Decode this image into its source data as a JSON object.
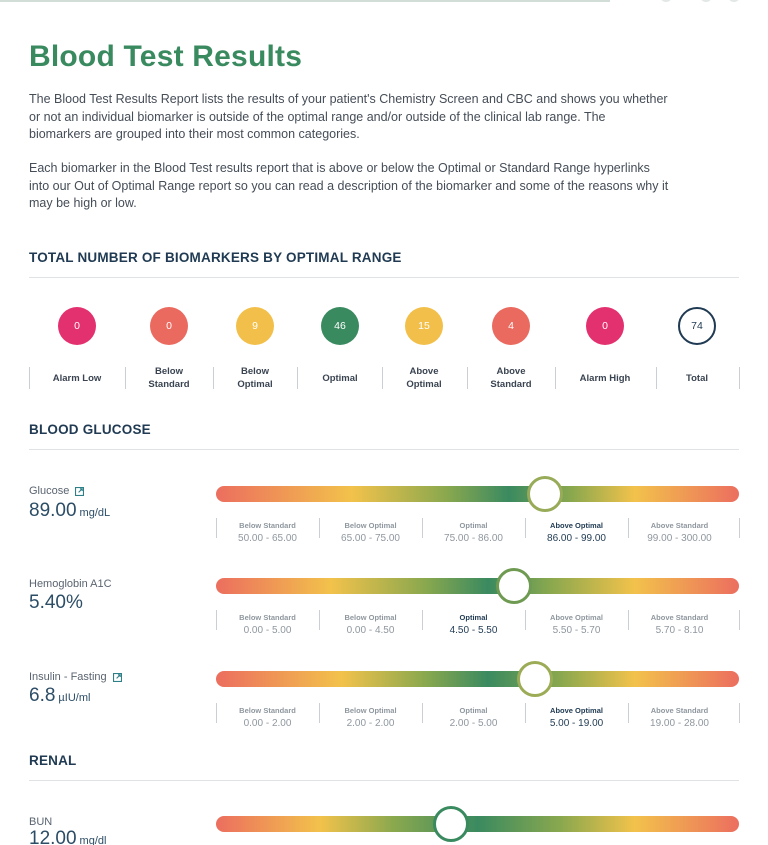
{
  "page": {
    "title": "Blood Test Results",
    "intro_p1": "The Blood Test Results Report lists the results of your patient's Chemistry Screen and CBC and shows you whether or not an individual biomarker is outside of the optimal range and/or outside of the clinical lab range. The biomarkers are grouped into their most common categories.",
    "intro_p2": "Each biomarker in the Blood Test results report that is above or below the Optimal or Standard Range hyperlinks into our Out of Optimal Range report so you can read a description of the biomarker and some of the reasons why it may be high or low."
  },
  "colors": {
    "title_green": "#3a8a60",
    "heading_navy": "#1f3a52",
    "alarm": "#e3306e",
    "below_standard": "#ea6a5f",
    "below_optimal": "#f2c04a",
    "optimal": "#3a8a60",
    "total_ring": "#1f3a52"
  },
  "summary": {
    "heading": "TOTAL NUMBER OF BIOMARKERS BY OPTIMAL RANGE",
    "items": [
      {
        "label": "Alarm Low",
        "count": "0",
        "color": "#e3306e"
      },
      {
        "label": "Below Standard",
        "count": "0",
        "color": "#ea6a5f"
      },
      {
        "label": "Below Optimal",
        "count": "9",
        "color": "#f2c04a"
      },
      {
        "label": "Optimal",
        "count": "46",
        "color": "#3a8a60"
      },
      {
        "label": "Above Optimal",
        "count": "15",
        "color": "#f2c04a"
      },
      {
        "label": "Above Standard",
        "count": "4",
        "color": "#ea6a5f"
      },
      {
        "label": "Alarm High",
        "count": "0",
        "color": "#e3306e"
      },
      {
        "label": "Total",
        "count": "74",
        "color": "#1f3a52"
      }
    ]
  },
  "sections": [
    {
      "heading": "BLOOD GLUCOSE",
      "biomarkers": [
        {
          "name": "Glucose",
          "value": "89.00",
          "unit": "mg/dL",
          "has_link": true,
          "indicator_position_pct": 63,
          "active_range_index": 3,
          "ranges": [
            {
              "label": "Below Standard",
              "range": "50.00 - 65.00"
            },
            {
              "label": "Below Optimal",
              "range": "65.00 - 75.00"
            },
            {
              "label": "Optimal",
              "range": "75.00 - 86.00"
            },
            {
              "label": "Above Optimal",
              "range": "86.00 - 99.00"
            },
            {
              "label": "Above Standard",
              "range": "99.00 - 300.00"
            }
          ]
        },
        {
          "name": "Hemoglobin A1C",
          "value": "5.40%",
          "unit": "",
          "has_link": false,
          "indicator_position_pct": 57,
          "active_range_index": 2,
          "ranges": [
            {
              "label": "Below Standard",
              "range": "0.00 - 5.00"
            },
            {
              "label": "Below Optimal",
              "range": "0.00 - 4.50"
            },
            {
              "label": "Optimal",
              "range": "4.50 - 5.50"
            },
            {
              "label": "Above Optimal",
              "range": "5.50 - 5.70"
            },
            {
              "label": "Above Standard",
              "range": "5.70 - 8.10"
            }
          ]
        },
        {
          "name": "Insulin - Fasting",
          "value": "6.8",
          "unit": "µIU/ml",
          "has_link": true,
          "indicator_position_pct": 61,
          "active_range_index": 3,
          "ranges": [
            {
              "label": "Below Standard",
              "range": "0.00 - 2.00"
            },
            {
              "label": "Below Optimal",
              "range": "2.00 - 2.00"
            },
            {
              "label": "Optimal",
              "range": "2.00 - 5.00"
            },
            {
              "label": "Above Optimal",
              "range": "5.00 - 19.00"
            },
            {
              "label": "Above Standard",
              "range": "19.00 - 28.00"
            }
          ]
        }
      ]
    },
    {
      "heading": "RENAL",
      "biomarkers": [
        {
          "name": "BUN",
          "value": "12.00",
          "unit": "mg/dl",
          "has_link": false,
          "indicator_position_pct": 45,
          "active_range_index": 2,
          "ranges": []
        }
      ]
    }
  ]
}
